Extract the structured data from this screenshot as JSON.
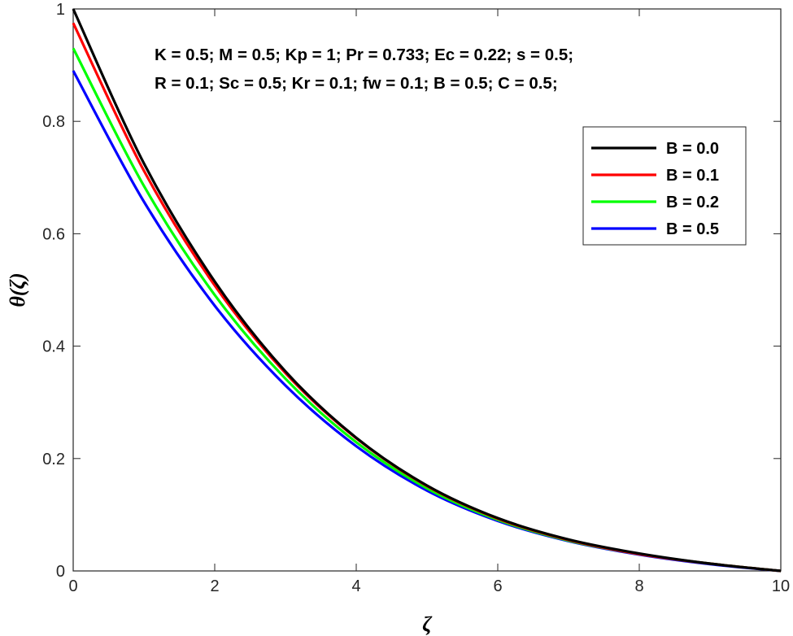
{
  "chart_data": {
    "type": "line",
    "xlabel": "ζ",
    "ylabel": "θ(ζ)",
    "xlim": [
      0,
      10
    ],
    "ylim": [
      0,
      1
    ],
    "xticks": [
      "0",
      "2",
      "4",
      "6",
      "8",
      "10"
    ],
    "yticks": [
      "0",
      "0.2",
      "0.4",
      "0.6",
      "0.8",
      "1"
    ],
    "x": [
      0,
      1,
      2,
      3,
      4,
      5,
      6,
      7,
      8,
      9,
      10
    ],
    "series": [
      {
        "name": "B = 0.0",
        "color": "#000000",
        "values": [
          1.0,
          0.725,
          0.515,
          0.355,
          0.237,
          0.152,
          0.094,
          0.056,
          0.031,
          0.013,
          0.0
        ]
      },
      {
        "name": "B = 0.1",
        "color": "#ff0000",
        "values": [
          0.975,
          0.712,
          0.508,
          0.352,
          0.236,
          0.151,
          0.093,
          0.055,
          0.03,
          0.013,
          0.0
        ]
      },
      {
        "name": "B = 0.2",
        "color": "#00ff00",
        "values": [
          0.93,
          0.685,
          0.491,
          0.342,
          0.229,
          0.147,
          0.091,
          0.054,
          0.03,
          0.013,
          0.0
        ]
      },
      {
        "name": "B = 0.5",
        "color": "#0000ff",
        "values": [
          0.89,
          0.657,
          0.472,
          0.33,
          0.222,
          0.143,
          0.089,
          0.053,
          0.029,
          0.012,
          0.0
        ]
      }
    ],
    "annotations": [
      "K = 0.5; M = 0.5; Kp = 1; Pr = 0.733; Ec = 0.22; s = 0.5;",
      "R = 0.1; Sc = 0.5; Kr = 0.1; fw = 0.1; B = 0.5; C = 0.5;"
    ],
    "legend_position": "top-right",
    "grid": false
  }
}
